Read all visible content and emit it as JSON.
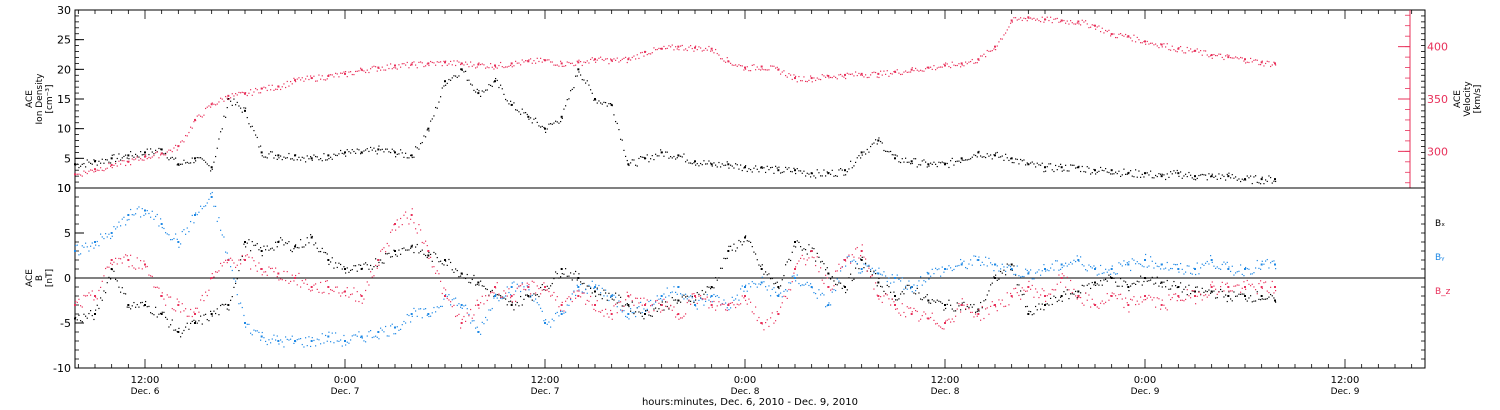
{
  "colors": {
    "black": "#000000",
    "magenta": "#e8305a",
    "blue": "#1e88e5"
  },
  "x_ticks": [
    {
      "time": "12:00",
      "date": "Dec. 6",
      "hours": 12
    },
    {
      "time": "0:00",
      "date": "Dec. 7",
      "hours": 24
    },
    {
      "time": "12:00",
      "date": "Dec. 7",
      "hours": 36
    },
    {
      "time": "0:00",
      "date": "Dec. 8",
      "hours": 48
    },
    {
      "time": "12:00",
      "date": "Dec. 8",
      "hours": 60
    },
    {
      "time": "0:00",
      "date": "Dec. 9",
      "hours": 72
    },
    {
      "time": "12:00",
      "date": "Dec. 9",
      "hours": 84
    }
  ],
  "x_axis_title": "hours:minutes, Dec.  6, 2010 - Dec.  9, 2010",
  "chart_data": [
    {
      "type": "scatter",
      "panel": "top",
      "left_axis": {
        "label_lines": [
          "ACE",
          "Ion Density",
          "[cm⁻³]"
        ],
        "ylim": [
          0,
          30
        ],
        "ticks": [
          0,
          5,
          10,
          15,
          20,
          25,
          30
        ]
      },
      "right_axis": {
        "label_lines": [
          "ACE",
          "Velocity",
          "[km/s]"
        ],
        "ylim": [
          265,
          435
        ],
        "ticks": [
          300,
          350,
          400
        ],
        "color": "#e8305a"
      },
      "xlim_hours": [
        7.8,
        88.8
      ],
      "series": [
        {
          "axis": "left",
          "color": "#000000",
          "spread": 0.7,
          "x": [
            7.8,
            9,
            10,
            11,
            12,
            13,
            14,
            15,
            16,
            17,
            18,
            19,
            20,
            21,
            22,
            23,
            24,
            25,
            26,
            27,
            28,
            29,
            30,
            31,
            32,
            33,
            34,
            35,
            36,
            37,
            38,
            39,
            40,
            41,
            42,
            43,
            44,
            45,
            46,
            47,
            48,
            49,
            50,
            51,
            52,
            53,
            54,
            55,
            56,
            57,
            58,
            59,
            60,
            61,
            62,
            63,
            64,
            65,
            66,
            67,
            68,
            69,
            70,
            71,
            72,
            73,
            74,
            75,
            76,
            77,
            78,
            79,
            79.8
          ],
          "y": [
            4,
            4.5,
            5,
            5.5,
            6,
            6.5,
            4,
            5,
            3.5,
            15,
            13,
            6,
            5.5,
            5.5,
            5,
            5.5,
            6,
            6,
            6.5,
            6,
            5.5,
            10,
            18,
            20,
            16,
            18,
            14,
            12,
            10,
            12,
            20,
            15,
            14,
            4,
            5,
            6,
            5.5,
            4.5,
            4,
            4,
            3.5,
            3.5,
            3,
            3,
            2.5,
            2.5,
            3,
            6,
            8,
            5,
            4.5,
            4,
            4,
            5,
            6,
            5.5,
            5,
            4,
            3.5,
            3.5,
            3.5,
            3,
            3,
            2.5,
            2.5,
            2,
            2.5,
            2,
            2,
            2,
            1.5,
            1.5,
            1.5
          ]
        },
        {
          "axis": "right",
          "color": "#e8305a",
          "spread": 3,
          "x": [
            7.8,
            9,
            10,
            11,
            12,
            13,
            14,
            15,
            16,
            17,
            18,
            19,
            20,
            21,
            22,
            23,
            24,
            25,
            26,
            27,
            28,
            29,
            30,
            31,
            32,
            33,
            34,
            35,
            36,
            37,
            38,
            39,
            40,
            41,
            42,
            43,
            44,
            45,
            46,
            47,
            48,
            49,
            50,
            51,
            52,
            53,
            54,
            55,
            56,
            57,
            58,
            59,
            60,
            61,
            62,
            63,
            64,
            65,
            66,
            67,
            68,
            69,
            70,
            71,
            72,
            73,
            74,
            75,
            76,
            77,
            78,
            79,
            79.8
          ],
          "y": [
            278,
            283,
            287,
            290,
            295,
            298,
            305,
            330,
            345,
            353,
            355,
            360,
            362,
            368,
            370,
            372,
            374,
            378,
            380,
            382,
            383,
            384,
            385,
            384,
            383,
            382,
            384,
            386,
            387,
            384,
            385,
            388,
            387,
            388,
            395,
            398,
            400,
            399,
            398,
            386,
            380,
            381,
            378,
            370,
            370,
            372,
            373,
            374,
            374,
            376,
            378,
            380,
            382,
            384,
            388,
            400,
            425,
            428,
            426,
            425,
            424,
            420,
            412,
            410,
            405,
            402,
            398,
            396,
            392,
            390,
            388,
            385,
            384
          ]
        }
      ]
    },
    {
      "type": "scatter",
      "panel": "bottom",
      "left_axis": {
        "label_lines": [
          "ACE",
          "B",
          "[nT]"
        ],
        "ylim": [
          -10,
          10
        ],
        "ticks": [
          -10,
          -5,
          0,
          5,
          10
        ]
      },
      "xlim_hours": [
        7.8,
        88.8
      ],
      "reference_line": 0,
      "series": [
        {
          "name": "Bₓ",
          "color": "#000000",
          "spread": 0.6,
          "x": [
            7.8,
            9,
            10,
            11,
            12,
            13,
            14,
            15,
            16,
            17,
            18,
            19,
            20,
            21,
            22,
            23,
            24,
            25,
            26,
            27,
            28,
            29,
            30,
            31,
            32,
            33,
            34,
            35,
            36,
            37,
            38,
            39,
            40,
            41,
            42,
            43,
            44,
            45,
            46,
            47,
            48,
            49,
            50,
            51,
            52,
            53,
            54,
            55,
            56,
            57,
            58,
            59,
            60,
            61,
            62,
            63,
            64,
            65,
            66,
            67,
            68,
            69,
            70,
            71,
            72,
            73,
            74,
            75,
            76,
            77,
            78,
            79,
            79.8
          ],
          "y": [
            -4.5,
            -4,
            1,
            -3,
            -3,
            -4,
            -6,
            -5,
            -4,
            -3,
            4,
            3,
            4,
            3.5,
            4.5,
            2,
            1,
            1,
            2,
            3,
            3.5,
            2.5,
            2,
            0.5,
            -0.5,
            -2,
            -3,
            -2,
            -1,
            1,
            0,
            -1.5,
            -2,
            -3,
            -4,
            -3,
            -2.5,
            -2,
            -1,
            3,
            4.5,
            1,
            -1,
            4,
            3,
            0.5,
            -1,
            2,
            -0.5,
            -2,
            -1,
            -2.5,
            -3,
            -3,
            -3.5,
            0,
            1.5,
            -4,
            -3,
            -2,
            -1.5,
            -0.5,
            0,
            -1,
            0,
            -0.5,
            -1,
            -1.5,
            -1.5,
            -2,
            -2,
            -2,
            -2.5
          ]
        },
        {
          "name": "Bᵧ",
          "color": "#1e88e5",
          "spread": 0.7,
          "x": [
            7.8,
            9,
            10,
            11,
            12,
            13,
            14,
            15,
            16,
            17,
            18,
            19,
            20,
            21,
            22,
            23,
            24,
            25,
            26,
            27,
            28,
            29,
            30,
            31,
            32,
            33,
            34,
            35,
            36,
            37,
            38,
            39,
            40,
            41,
            42,
            43,
            44,
            45,
            46,
            47,
            48,
            49,
            50,
            51,
            52,
            53,
            54,
            55,
            56,
            57,
            58,
            59,
            60,
            61,
            62,
            63,
            64,
            65,
            66,
            67,
            68,
            69,
            70,
            71,
            72,
            73,
            74,
            75,
            76,
            77,
            78,
            79,
            79.8
          ],
          "y": [
            3,
            4,
            5,
            7,
            7.5,
            6,
            4,
            7,
            9,
            2,
            -5,
            -6.5,
            -7,
            -7,
            -7,
            -6.5,
            -7,
            -6.5,
            -6,
            -5.5,
            -4,
            -4,
            -2,
            -3,
            -6,
            -2,
            -1,
            -1,
            -5,
            -4,
            -1,
            -1,
            -2,
            -4,
            -3,
            -2,
            -1,
            -3,
            -2,
            -3,
            -1,
            -0.5,
            -2,
            0,
            -1,
            -3,
            2,
            1,
            0.5,
            0,
            -1,
            0.5,
            1,
            1.5,
            2,
            1.5,
            1,
            0.5,
            1,
            1.5,
            2,
            1,
            1,
            1.5,
            2,
            1.5,
            1,
            1,
            2,
            1,
            1,
            1.5,
            1.5
          ]
        },
        {
          "name": "B_z",
          "color": "#e8305a",
          "spread": 0.8,
          "x": [
            7.8,
            9,
            10,
            11,
            12,
            13,
            14,
            15,
            16,
            17,
            18,
            19,
            20,
            21,
            22,
            23,
            24,
            25,
            26,
            27,
            28,
            29,
            30,
            31,
            32,
            33,
            34,
            35,
            36,
            37,
            38,
            39,
            40,
            41,
            42,
            43,
            44,
            45,
            46,
            47,
            48,
            49,
            50,
            51,
            52,
            53,
            54,
            55,
            56,
            57,
            58,
            59,
            60,
            61,
            62,
            63,
            64,
            65,
            66,
            67,
            68,
            69,
            70,
            71,
            72,
            73,
            74,
            75,
            76,
            77,
            78,
            79,
            79.8
          ],
          "y": [
            -3,
            -2,
            2,
            2,
            1.5,
            -2,
            -3,
            -4,
            0,
            2,
            2,
            1,
            0.5,
            0,
            -1,
            -1,
            -1.5,
            -2,
            2,
            6,
            7,
            3,
            -2,
            -5,
            -3,
            -1,
            -2,
            -1,
            -1,
            -3,
            -2,
            -3,
            -4,
            -2,
            -3,
            -3,
            -4,
            -2,
            -3,
            -3,
            -2,
            -5,
            -4,
            1,
            3,
            -1,
            2,
            3,
            -2,
            -3,
            -4,
            -4.5,
            -5,
            -3,
            -4,
            -3,
            -2,
            -1,
            -2,
            0,
            -2,
            -3,
            -2,
            -3,
            -2,
            -3,
            -2,
            -2,
            -1,
            -1,
            -1,
            -1,
            -1
          ]
        }
      ]
    }
  ]
}
